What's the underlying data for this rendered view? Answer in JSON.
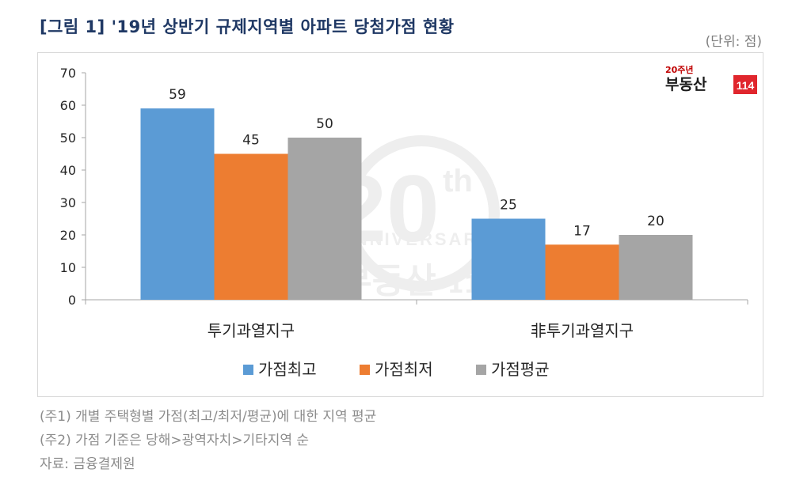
{
  "title": "[그림 1] '19년 상반기 규제지역별 아파트 당첨가점 현황",
  "unit": "(단위: 점)",
  "logo": {
    "badge": "20주년",
    "name": "부동산",
    "number": "114"
  },
  "watermark": {
    "year": "20",
    "suffix": "th",
    "text": "ANNIVERSARY"
  },
  "notes": [
    "(주1) 개별 주택형별 가점(최고/최저/평균)에 대한 지역 평균",
    "(주2) 가점 기준은 당해>광역자치>기타지역 순",
    "자료: 금융결제원"
  ],
  "chart_data": {
    "type": "bar",
    "categories": [
      "투기과열지구",
      "非투기과열지구"
    ],
    "series": [
      {
        "name": "가점최고",
        "values": [
          59,
          25
        ],
        "color": "#5b9bd5"
      },
      {
        "name": "가점최저",
        "values": [
          45,
          17
        ],
        "color": "#ed7d31"
      },
      {
        "name": "가점평균",
        "values": [
          50,
          20
        ],
        "color": "#a5a5a5"
      }
    ],
    "ylim": [
      0,
      70
    ],
    "yticks": [
      "0",
      "10",
      "20",
      "30",
      "40",
      "50",
      "60",
      "70"
    ],
    "grid": false,
    "legend_position": "bottom",
    "data_labels": true
  }
}
